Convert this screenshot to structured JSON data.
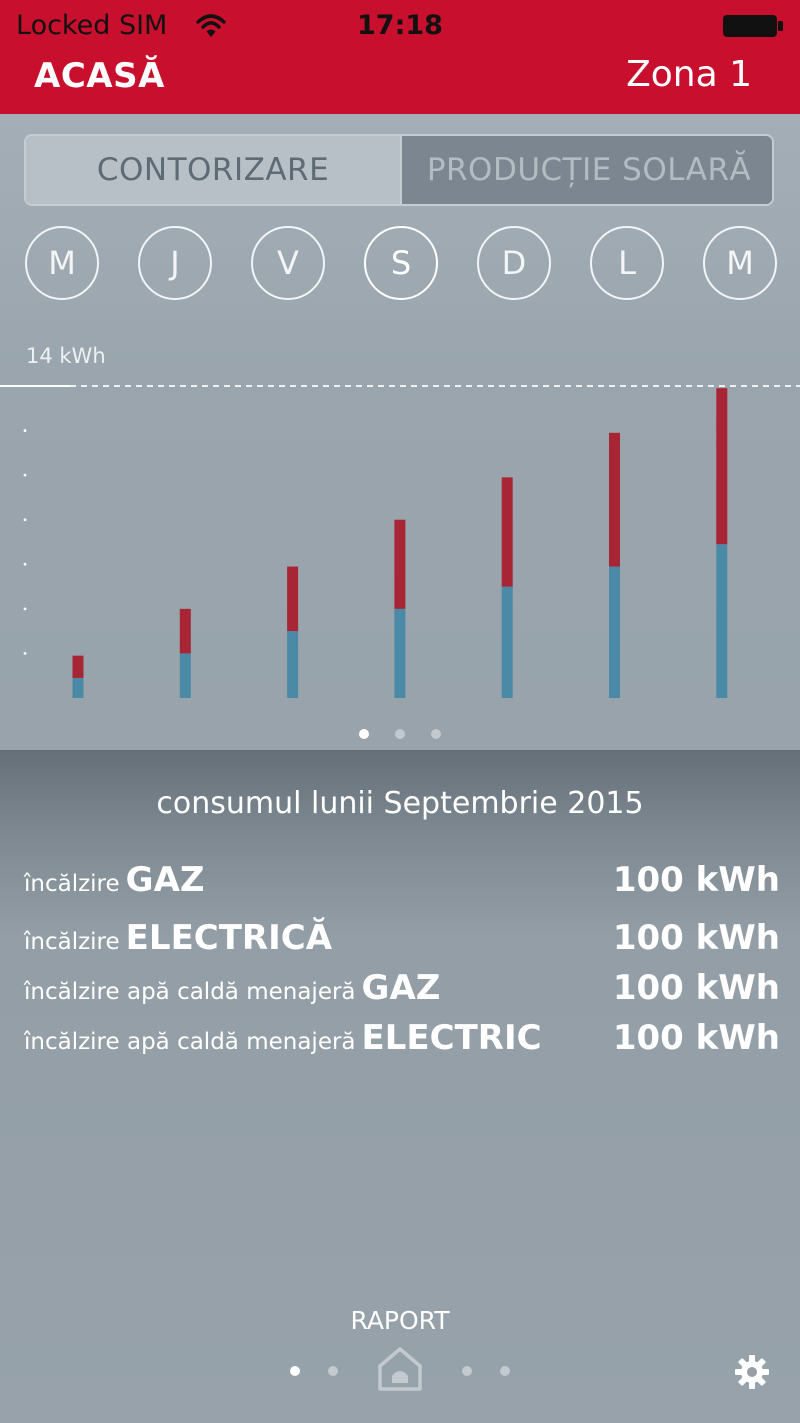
{
  "status_bar": {
    "carrier": "Locked SIM",
    "time": "17:18"
  },
  "header": {
    "title": "ACASĂ",
    "zone": "Zona 1"
  },
  "segmented_control": {
    "options": [
      "CONTORIZARE",
      "PRODUCȚIE SOLARĂ"
    ],
    "selected": "CONTORIZARE"
  },
  "days": {
    "labels": [
      "M",
      "J",
      "V",
      "S",
      "D",
      "L",
      "M"
    ],
    "selected_index": 3
  },
  "chart_data": {
    "type": "bar",
    "stacked": true,
    "categories": [
      "M",
      "J",
      "V",
      "S",
      "D",
      "L",
      "M"
    ],
    "series": [
      {
        "color": "#4a8aa6",
        "values": [
          0.9,
          2.0,
          3.0,
          4.0,
          5.0,
          5.9,
          6.9
        ]
      },
      {
        "color": "#a72534",
        "values": [
          1.0,
          2.0,
          2.9,
          4.0,
          4.9,
          6.0,
          7.0
        ]
      }
    ],
    "ymax_label": "14 kWh",
    "ylim": [
      0,
      14
    ],
    "max_line": 14,
    "grid": false
  },
  "chart_pager": {
    "count": 3,
    "active": 0
  },
  "summary": {
    "title": "consumul lunii Septembrie 2015",
    "rows": [
      {
        "label": "încălzire",
        "strong": "GAZ",
        "value": "100 kWh"
      },
      {
        "label": "încălzire",
        "strong": "ELECTRICĂ",
        "value": "100 kWh"
      },
      {
        "label": "încălzire apă caldă menajeră",
        "strong": "GAZ",
        "value": "100 kWh"
      },
      {
        "label": "încălzire apă caldă menajeră",
        "strong": "ELECTRIC",
        "value": "100 kWh"
      }
    ]
  },
  "bottom_nav": {
    "label": "RAPORT",
    "active_dot": 0,
    "icons": [
      "home-icon",
      "gear-icon"
    ]
  }
}
